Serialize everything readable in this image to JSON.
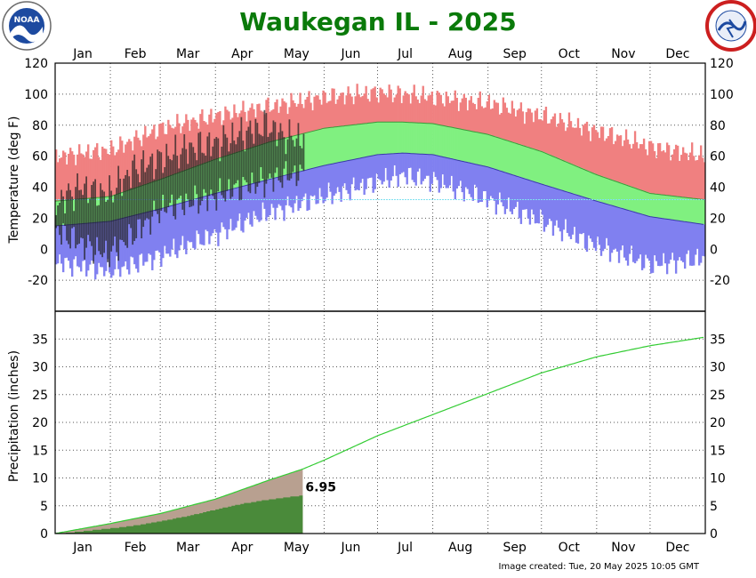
{
  "chart_data": [
    {
      "type": "bar",
      "title": "Waukegan IL - 2025",
      "ylabel": "Temperature (deg F)",
      "ylim": [
        -40,
        120
      ],
      "yticks": [
        120,
        100,
        80,
        60,
        40,
        20,
        0,
        -20
      ],
      "months": [
        "Jan",
        "Feb",
        "Mar",
        "Apr",
        "May",
        "Jun",
        "Jul",
        "Aug",
        "Sep",
        "Oct",
        "Nov",
        "Dec"
      ],
      "grid": true,
      "colors": {
        "record_range": "#f08080",
        "normal_range": "#80f080",
        "record_low_range": "#8080f0",
        "observed": "#202020",
        "reference_line": "#80e0f0"
      },
      "reference_line_y": 32,
      "normal_high": {
        "x_day": [
          1,
          32,
          60,
          91,
          121,
          152,
          182,
          196,
          213,
          244,
          274,
          305,
          335,
          365
        ],
        "y": [
          31,
          34,
          45,
          58,
          69,
          78,
          82,
          82,
          81,
          74,
          63,
          48,
          36,
          32
        ]
      },
      "normal_low": {
        "x_day": [
          1,
          32,
          60,
          91,
          121,
          152,
          182,
          196,
          213,
          244,
          274,
          305,
          335,
          365
        ],
        "y": [
          15,
          18,
          26,
          36,
          45,
          54,
          61,
          62,
          61,
          53,
          42,
          31,
          21,
          16
        ]
      },
      "record_high": {
        "x_day": [
          1,
          32,
          60,
          91,
          121,
          152,
          182,
          196,
          213,
          244,
          274,
          305,
          335,
          365
        ],
        "y": [
          60,
          64,
          78,
          86,
          92,
          98,
          101,
          100,
          98,
          94,
          86,
          76,
          66,
          60
        ]
      },
      "record_low": {
        "x_day": [
          1,
          32,
          60,
          91,
          121,
          152,
          182,
          196,
          213,
          244,
          274,
          305,
          335,
          365
        ],
        "y": [
          -8,
          -14,
          -4,
          10,
          24,
          34,
          44,
          48,
          44,
          32,
          18,
          2,
          -10,
          -6
        ]
      },
      "observed_high": {
        "x_day": [
          1,
          15,
          30,
          45,
          60,
          75,
          90,
          105,
          120,
          130
        ],
        "y": [
          30,
          40,
          35,
          52,
          58,
          65,
          68,
          74,
          80,
          72
        ]
      },
      "observed_low": {
        "x_day": [
          1,
          15,
          30,
          45,
          60,
          75,
          90,
          105,
          120,
          130
        ],
        "y": [
          12,
          4,
          -4,
          10,
          26,
          30,
          34,
          40,
          44,
          48
        ]
      },
      "observed_end_day": 140
    },
    {
      "type": "area",
      "ylabel": "Precipitation (inches)",
      "ylim": [
        0,
        40
      ],
      "yticks": [
        35,
        30,
        25,
        20,
        15,
        10,
        5,
        0
      ],
      "months": [
        "Jan",
        "Feb",
        "Mar",
        "Apr",
        "May",
        "Jun",
        "Jul",
        "Aug",
        "Sep",
        "Oct",
        "Nov",
        "Dec"
      ],
      "grid": true,
      "colors": {
        "normal_line": "#33cc33",
        "normal_area": "#b8a090",
        "observed_area": "#4a8a3a"
      },
      "normal_cumulative": {
        "x_day": [
          1,
          32,
          60,
          91,
          121,
          140,
          152,
          182,
          213,
          244,
          274,
          305,
          335,
          365
        ],
        "y": [
          0,
          1.8,
          3.6,
          6.2,
          9.6,
          11.6,
          13.2,
          17.6,
          21.4,
          25.2,
          28.9,
          31.8,
          33.8,
          35.3
        ]
      },
      "observed_cumulative": {
        "x_day": [
          1,
          20,
          32,
          45,
          60,
          75,
          91,
          105,
          121,
          140
        ],
        "y": [
          0,
          0.6,
          1.0,
          1.5,
          2.3,
          3.2,
          4.4,
          5.4,
          6.2,
          6.95
        ]
      },
      "ytd_label": "6.95",
      "observed_end_day": 140
    }
  ],
  "footer": "Image created: Tue, 20 May 2025 10:05 GMT"
}
